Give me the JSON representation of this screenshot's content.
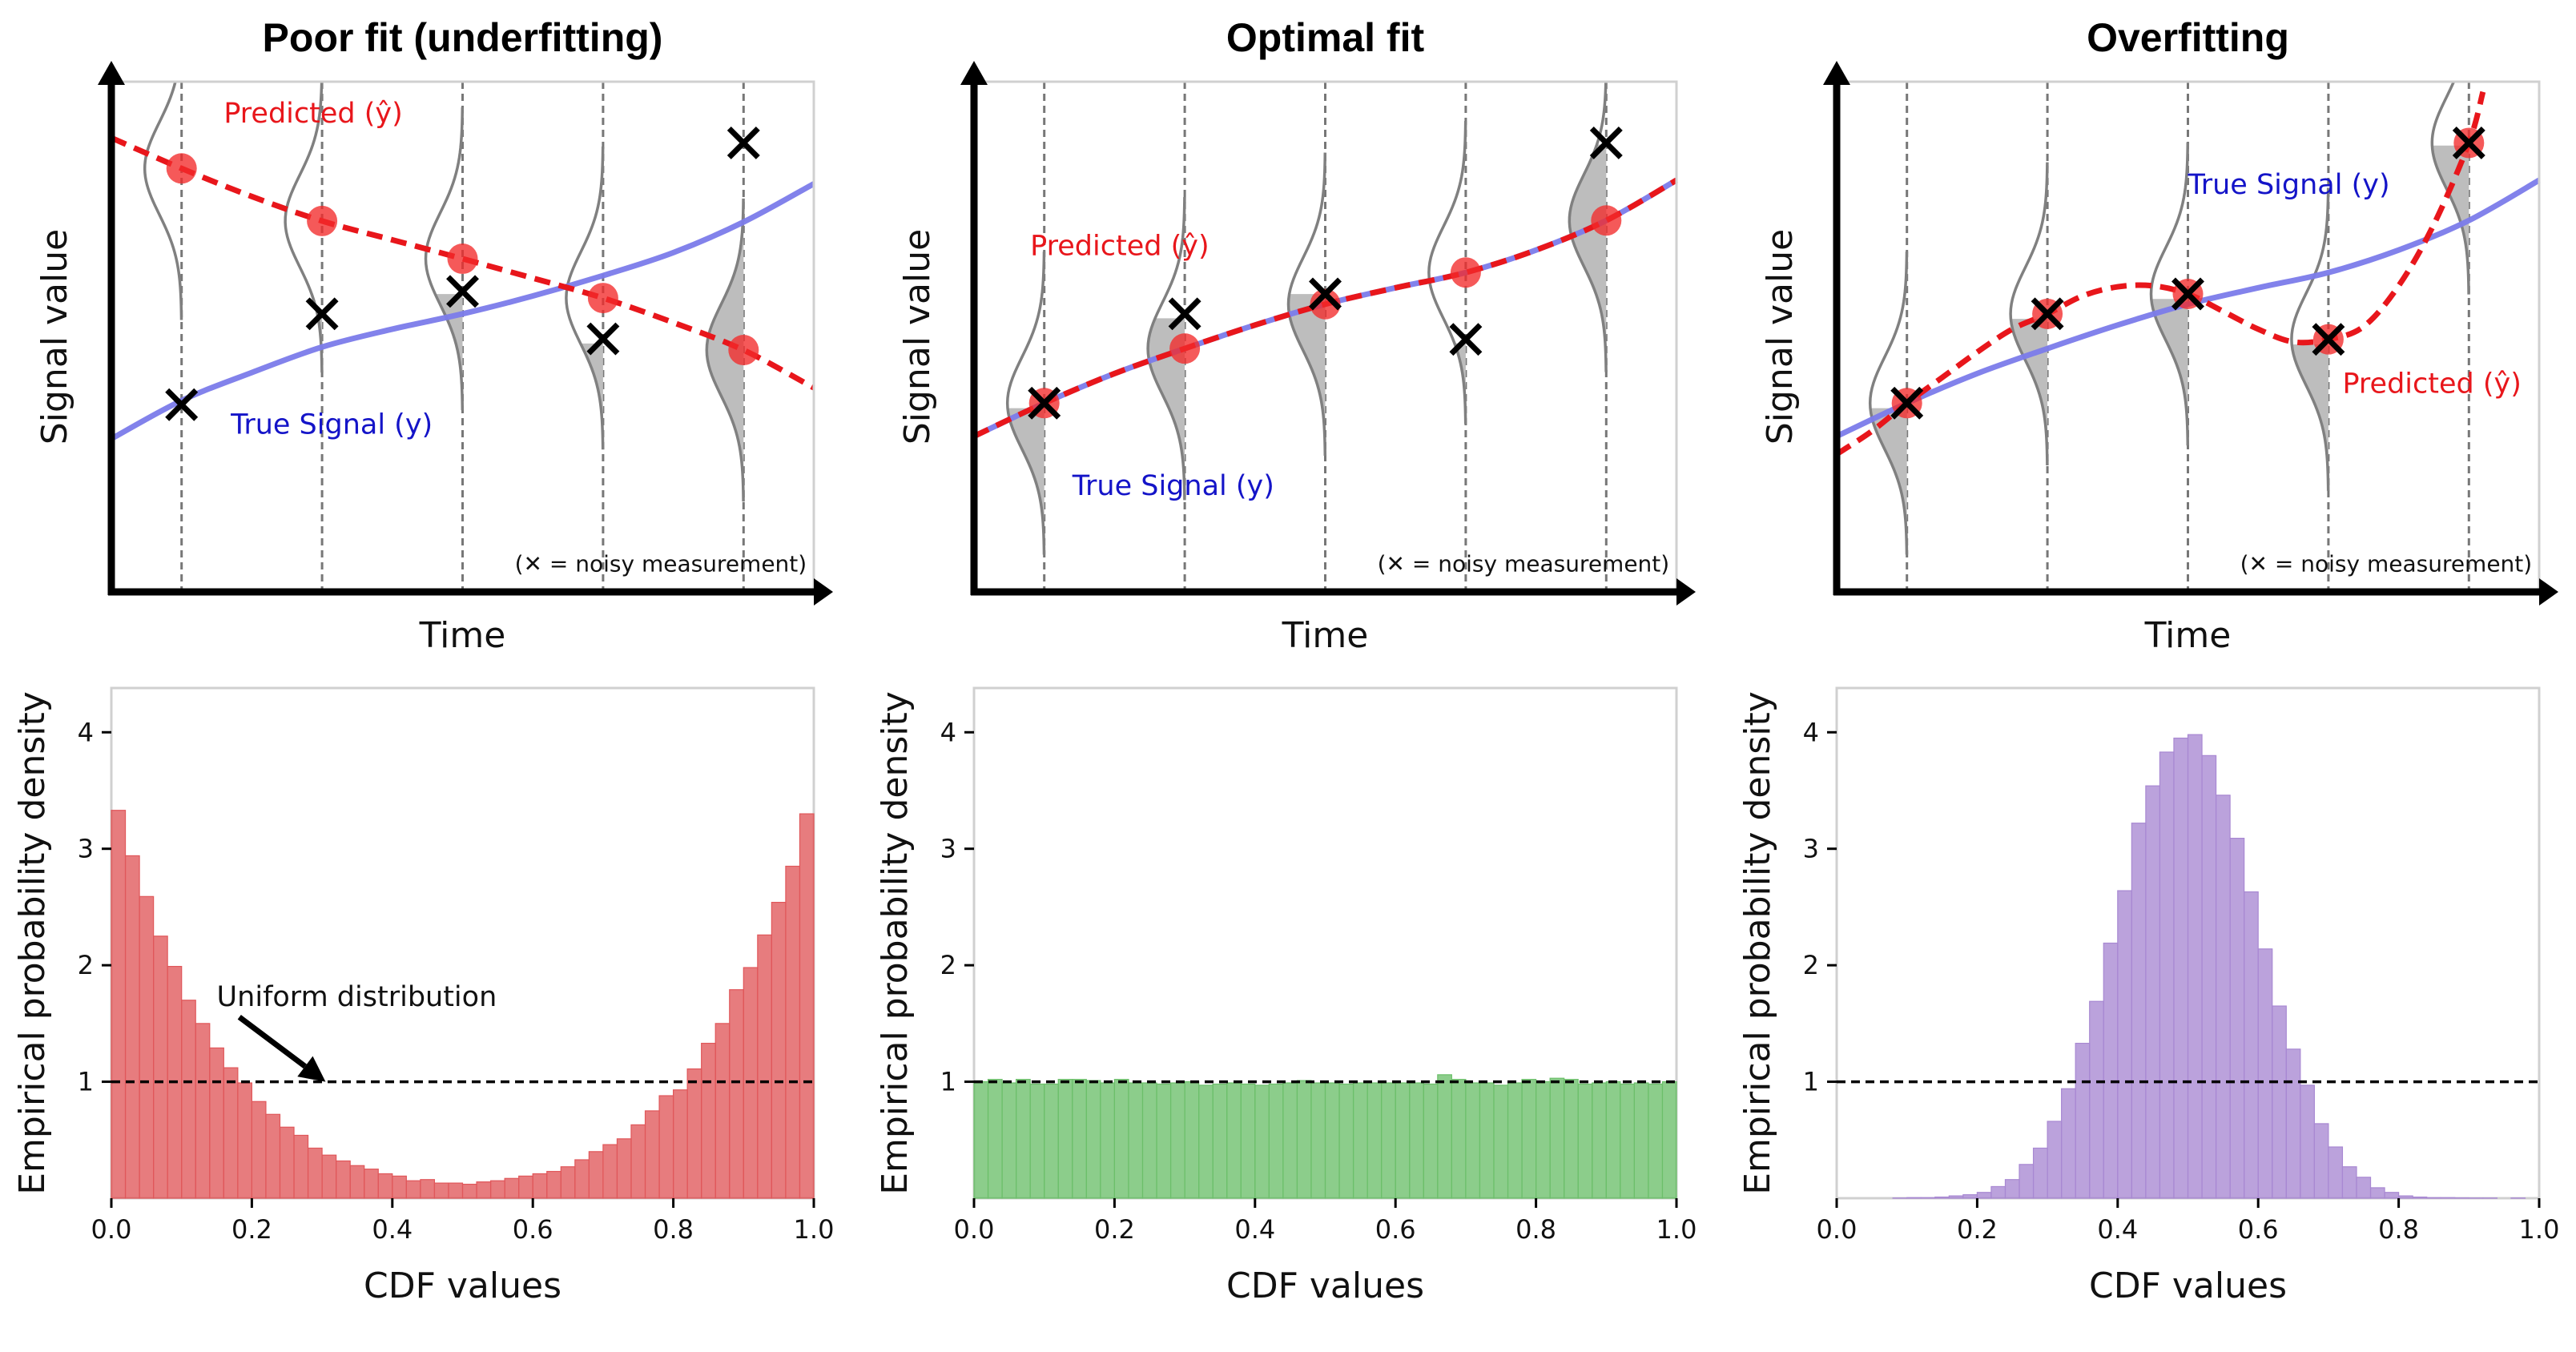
{
  "chart_data": [
    {
      "type": "line",
      "panel": "top-left",
      "title": "Poor fit (underfitting)",
      "xlabel": "Time",
      "ylabel": "Signal value",
      "xlim": [
        0,
        1
      ],
      "ylim": [
        0,
        1
      ],
      "grid": false,
      "measurement_times": [
        0.1,
        0.3,
        0.5,
        0.7,
        0.9
      ],
      "series": [
        {
          "name": "True Signal (y)",
          "color": "#7b7bea",
          "style": "solid",
          "x": [
            0,
            0.1,
            0.2,
            0.3,
            0.4,
            0.5,
            0.6,
            0.7,
            0.8,
            0.9,
            1.0
          ],
          "y": [
            0.3,
            0.375,
            0.43,
            0.48,
            0.515,
            0.545,
            0.58,
            0.62,
            0.665,
            0.725,
            0.8
          ]
        },
        {
          "name": "Predicted (ŷ)",
          "color": "#e8161b",
          "style": "dashed",
          "x": [
            0,
            0.1,
            0.2,
            0.3,
            0.4,
            0.5,
            0.6,
            0.7,
            0.8,
            0.9,
            1.0
          ],
          "y": [
            0.89,
            0.83,
            0.775,
            0.727,
            0.69,
            0.653,
            0.615,
            0.576,
            0.528,
            0.474,
            0.4
          ]
        }
      ],
      "predicted_points": [
        0.83,
        0.727,
        0.653,
        0.576,
        0.474
      ],
      "measurements": [
        0.367,
        0.545,
        0.589,
        0.496,
        0.88
      ],
      "annotations": [
        {
          "text": "Predicted (ŷ)",
          "color": "red",
          "x": 0.16,
          "y": 0.92
        },
        {
          "text": "True Signal (y)",
          "color": "blue",
          "x": 0.17,
          "y": 0.31
        },
        {
          "text": "(✕ = noisy measurement)",
          "color": "black",
          "x": 0.99,
          "y": 0.04,
          "anchor": "end"
        }
      ]
    },
    {
      "type": "line",
      "panel": "top-center",
      "title": "Optimal fit",
      "xlabel": "Time",
      "ylabel": "Signal value",
      "xlim": [
        0,
        1
      ],
      "ylim": [
        0,
        1
      ],
      "grid": false,
      "measurement_times": [
        0.1,
        0.3,
        0.5,
        0.7,
        0.9
      ],
      "series": [
        {
          "name": "True Signal (y)",
          "color": "#7b7bea",
          "style": "solid",
          "x": [
            0,
            0.1,
            0.2,
            0.3,
            0.4,
            0.5,
            0.6,
            0.7,
            0.8,
            0.9,
            1.0
          ],
          "y": [
            0.305,
            0.37,
            0.428,
            0.477,
            0.523,
            0.564,
            0.596,
            0.626,
            0.67,
            0.728,
            0.807
          ]
        },
        {
          "name": "Predicted (ŷ)",
          "color": "#e8161b",
          "style": "dashed",
          "x": [
            0,
            0.1,
            0.2,
            0.3,
            0.4,
            0.5,
            0.6,
            0.7,
            0.8,
            0.9,
            1.0
          ],
          "y": [
            0.305,
            0.37,
            0.428,
            0.477,
            0.523,
            0.564,
            0.596,
            0.626,
            0.67,
            0.728,
            0.807
          ]
        }
      ],
      "predicted_points": [
        0.37,
        0.477,
        0.564,
        0.626,
        0.728
      ],
      "measurements": [
        0.37,
        0.545,
        0.584,
        0.495,
        0.88
      ],
      "annotations": [
        {
          "text": "Predicted (ŷ)",
          "color": "red",
          "x": 0.08,
          "y": 0.66
        },
        {
          "text": "True Signal (y)",
          "color": "blue",
          "x": 0.14,
          "y": 0.19
        },
        {
          "text": "(✕ = noisy measurement)",
          "color": "black",
          "x": 0.99,
          "y": 0.04,
          "anchor": "end"
        }
      ]
    },
    {
      "type": "line",
      "panel": "top-right",
      "title": "Overfitting",
      "xlabel": "Time",
      "ylabel": "Signal value",
      "xlim": [
        0,
        1
      ],
      "ylim": [
        0,
        1
      ],
      "grid": false,
      "measurement_times": [
        0.1,
        0.3,
        0.5,
        0.7,
        0.9
      ],
      "series": [
        {
          "name": "True Signal (y)",
          "color": "#7b7bea",
          "style": "solid",
          "x": [
            0,
            0.1,
            0.2,
            0.3,
            0.4,
            0.5,
            0.6,
            0.7,
            0.8,
            0.9,
            1.0
          ],
          "y": [
            0.305,
            0.37,
            0.428,
            0.477,
            0.523,
            0.564,
            0.596,
            0.626,
            0.67,
            0.728,
            0.807
          ]
        },
        {
          "name": "Predicted (ŷ)",
          "color": "#e8161b",
          "style": "dashed",
          "x": [
            0,
            0.05,
            0.1,
            0.15,
            0.2,
            0.25,
            0.3,
            0.35,
            0.4,
            0.45,
            0.5,
            0.55,
            0.6,
            0.65,
            0.7,
            0.75,
            0.8,
            0.85,
            0.9,
            0.92
          ],
          "y": [
            0.27,
            0.315,
            0.37,
            0.42,
            0.47,
            0.515,
            0.545,
            0.58,
            0.598,
            0.6,
            0.584,
            0.55,
            0.515,
            0.49,
            0.495,
            0.52,
            0.6,
            0.72,
            0.88,
            0.98
          ]
        }
      ],
      "predicted_points": [
        0.37,
        0.545,
        0.584,
        0.495,
        0.88
      ],
      "measurements": [
        0.37,
        0.545,
        0.584,
        0.495,
        0.88
      ],
      "annotations": [
        {
          "text": "True Signal (y)",
          "color": "blue",
          "x": 0.5,
          "y": 0.78
        },
        {
          "text": "Predicted (ŷ)",
          "color": "red",
          "x": 0.72,
          "y": 0.39
        },
        {
          "text": "(✕ = noisy measurement)",
          "color": "black",
          "x": 0.99,
          "y": 0.04,
          "anchor": "end"
        }
      ]
    },
    {
      "type": "bar",
      "panel": "bottom-left",
      "title": "",
      "xlabel": "CDF values",
      "ylabel": "Empirical probability density",
      "xlim": [
        0,
        1
      ],
      "ylim": [
        0,
        4.38
      ],
      "xticks": [
        "0.0",
        "0.2",
        "0.4",
        "0.6",
        "0.8",
        "1.0"
      ],
      "yticks": [
        "1",
        "2",
        "3",
        "4"
      ],
      "color": "#e0575a",
      "bin_width": 0.02,
      "values": [
        3.33,
        2.94,
        2.59,
        2.25,
        1.99,
        1.7,
        1.5,
        1.29,
        1.12,
        0.99,
        0.83,
        0.72,
        0.61,
        0.54,
        0.43,
        0.37,
        0.32,
        0.28,
        0.25,
        0.21,
        0.19,
        0.15,
        0.16,
        0.13,
        0.13,
        0.12,
        0.14,
        0.15,
        0.17,
        0.19,
        0.21,
        0.23,
        0.27,
        0.33,
        0.4,
        0.46,
        0.51,
        0.63,
        0.75,
        0.88,
        0.93,
        1.11,
        1.33,
        1.5,
        1.79,
        1.98,
        2.26,
        2.54,
        2.85,
        3.3
      ],
      "reference_line": {
        "y": 1,
        "style": "dashed"
      },
      "annotation": {
        "text": "Uniform distribution",
        "text_x": 0.15,
        "text_y": 1.65,
        "arrow_from": [
          0.205,
          1.5
        ],
        "arrow_to": [
          0.305,
          1.0
        ]
      }
    },
    {
      "type": "bar",
      "panel": "bottom-center",
      "title": "",
      "xlabel": "CDF values",
      "ylabel": "Empirical probability density",
      "xlim": [
        0,
        1
      ],
      "ylim": [
        0,
        4.38
      ],
      "xticks": [
        "0.0",
        "0.2",
        "0.4",
        "0.6",
        "0.8",
        "1.0"
      ],
      "yticks": [
        "1",
        "2",
        "3",
        "4"
      ],
      "color": "#6cbf6a",
      "bin_width": 0.02,
      "values": [
        1.0,
        1.02,
        0.99,
        1.02,
        0.98,
        0.98,
        1.02,
        1.02,
        1.01,
        0.99,
        1.02,
        0.99,
        0.99,
        0.98,
        0.99,
        1.0,
        0.97,
        0.98,
        0.99,
        0.98,
        0.97,
        0.98,
        0.99,
        1.01,
        0.99,
        0.99,
        0.98,
        0.99,
        0.99,
        0.99,
        0.99,
        0.99,
        0.98,
        1.06,
        1.02,
        0.99,
        0.99,
        0.97,
        0.99,
        1.02,
        1.0,
        1.03,
        1.02,
        0.98,
        0.99,
        1.0,
        0.98,
        0.99,
        0.98,
        1.0
      ],
      "reference_line": {
        "y": 1,
        "style": "dashed"
      }
    },
    {
      "type": "bar",
      "panel": "bottom-right",
      "title": "",
      "xlabel": "CDF values",
      "ylabel": "Empirical probability density",
      "xlim": [
        0,
        1
      ],
      "ylim": [
        0,
        4.38
      ],
      "xticks": [
        "0.0",
        "0.2",
        "0.4",
        "0.6",
        "0.8",
        "1.0"
      ],
      "yticks": [
        "1",
        "2",
        "3",
        "4"
      ],
      "color": "#a888d2",
      "bin_width": 0.02,
      "values": [
        0.0,
        0.0,
        0.0,
        0.0,
        0.002,
        0.005,
        0.005,
        0.01,
        0.02,
        0.03,
        0.05,
        0.1,
        0.16,
        0.29,
        0.43,
        0.66,
        0.94,
        1.33,
        1.69,
        2.19,
        2.64,
        3.22,
        3.54,
        3.83,
        3.95,
        3.98,
        3.8,
        3.46,
        3.09,
        2.63,
        2.14,
        1.65,
        1.28,
        0.97,
        0.64,
        0.44,
        0.27,
        0.18,
        0.09,
        0.05,
        0.02,
        0.01,
        0.005,
        0.005,
        0.003,
        0.002,
        0.002,
        0.0,
        0.002,
        0.0
      ],
      "reference_line": {
        "y": 1,
        "style": "dashed"
      }
    }
  ]
}
